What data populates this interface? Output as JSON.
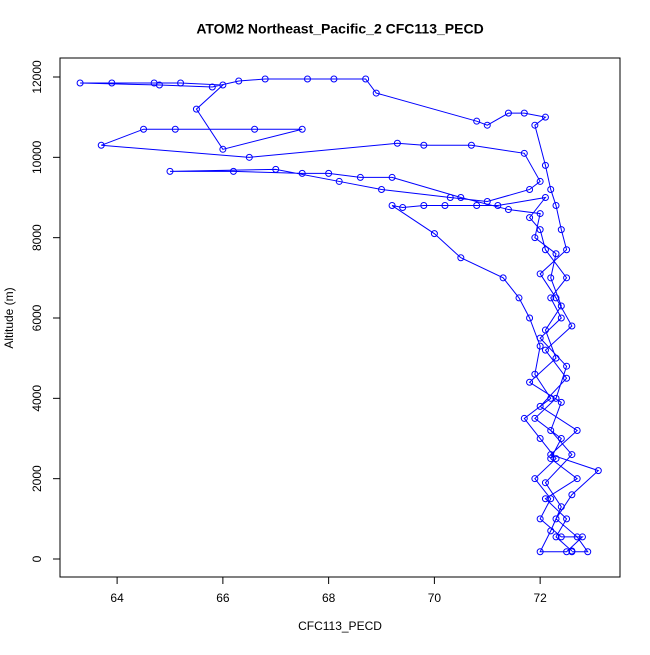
{
  "chart_data": {
    "type": "line",
    "title": "ATOM2 Northeast_Pacific_2 CFC113_PECD",
    "x_label": "CFC113_PECD",
    "y_label": "Altitude (m)",
    "color": "#0000ff",
    "markers": "open-circle",
    "grid": false,
    "xlim": [
      62.92,
      73.51
    ],
    "ylim": [
      -448,
      12473
    ],
    "xticks": [
      64,
      66,
      68,
      70,
      72
    ],
    "yticks": [
      0,
      2000,
      4000,
      6000,
      8000,
      10000,
      12000
    ],
    "x": [
      72.6,
      72.3,
      72.5,
      72.1,
      72.7,
      72.2,
      72.4,
      71.9,
      72.3,
      72.5,
      72.0,
      72.4,
      72.2,
      72.5,
      72.1,
      72.0,
      71.8,
      72.1,
      71.2,
      70.8,
      70.2,
      69.8,
      69.4,
      69.2,
      70.0,
      70.5,
      71.3,
      71.6,
      71.8,
      72.0,
      71.9,
      72.2,
      71.7,
      72.0,
      72.3,
      71.9,
      72.2,
      72.0,
      72.4,
      72.8,
      72.5,
      72.0,
      72.2,
      72.4,
      72.1,
      72.6,
      72.2,
      72.4,
      71.8,
      72.3,
      72.1,
      72.4,
      72.2,
      72.3,
      71.9,
      72.0,
      71.4,
      70.5,
      69.2,
      68.6,
      68.0,
      67.5,
      66.2,
      65.0,
      67.0,
      68.2,
      69.0,
      70.3,
      71.0,
      71.8,
      72.0,
      71.7,
      70.7,
      69.8,
      69.3,
      66.5,
      63.7,
      64.5,
      65.1,
      66.6,
      67.5,
      66.0,
      65.5,
      66.0,
      65.2,
      64.7,
      63.9,
      63.3,
      64.8,
      65.8,
      66.3,
      66.8,
      67.6,
      68.1,
      68.7,
      68.9,
      70.8,
      71.0,
      71.4,
      71.7,
      72.1,
      71.9,
      72.1,
      72.2,
      72.3,
      72.4,
      72.5,
      72.0,
      72.3,
      72.6,
      72.1,
      72.5,
      72.0,
      72.7,
      72.2,
      73.1,
      72.6,
      72.3,
      72.7,
      72.9,
      72.6
    ],
    "series": [
      {
        "name": "Altitude",
        "values": [
          200,
          550,
          1000,
          1500,
          2000,
          2500,
          3000,
          3500,
          4000,
          4800,
          5500,
          6000,
          6500,
          7000,
          7700,
          8200,
          8500,
          9000,
          8800,
          8800,
          8800,
          8800,
          8750,
          8800,
          8100,
          7500,
          7000,
          6500,
          6000,
          5300,
          4600,
          4000,
          3500,
          3000,
          2500,
          2000,
          1500,
          1000,
          550,
          550,
          180,
          180,
          700,
          1300,
          1900,
          2600,
          3200,
          3900,
          4400,
          5000,
          5700,
          6300,
          7000,
          7600,
          8000,
          8600,
          8700,
          9000,
          9500,
          9500,
          9600,
          9600,
          9650,
          9650,
          9700,
          9400,
          9200,
          9000,
          8900,
          9200,
          9400,
          10100,
          10300,
          10300,
          10350,
          10000,
          10300,
          10700,
          10700,
          10700,
          10700,
          10200,
          11200,
          11800,
          11850,
          11850,
          11850,
          11850,
          11800,
          11750,
          11900,
          11950,
          11950,
          11950,
          11950,
          11600,
          10900,
          10800,
          11100,
          11100,
          11000,
          10800,
          9800,
          9200,
          8800,
          8200,
          7700,
          7100,
          6500,
          5800,
          5200,
          4500,
          3800,
          3200,
          2600,
          2200,
          1600,
          1000,
          550,
          180,
          180
        ]
      }
    ]
  }
}
